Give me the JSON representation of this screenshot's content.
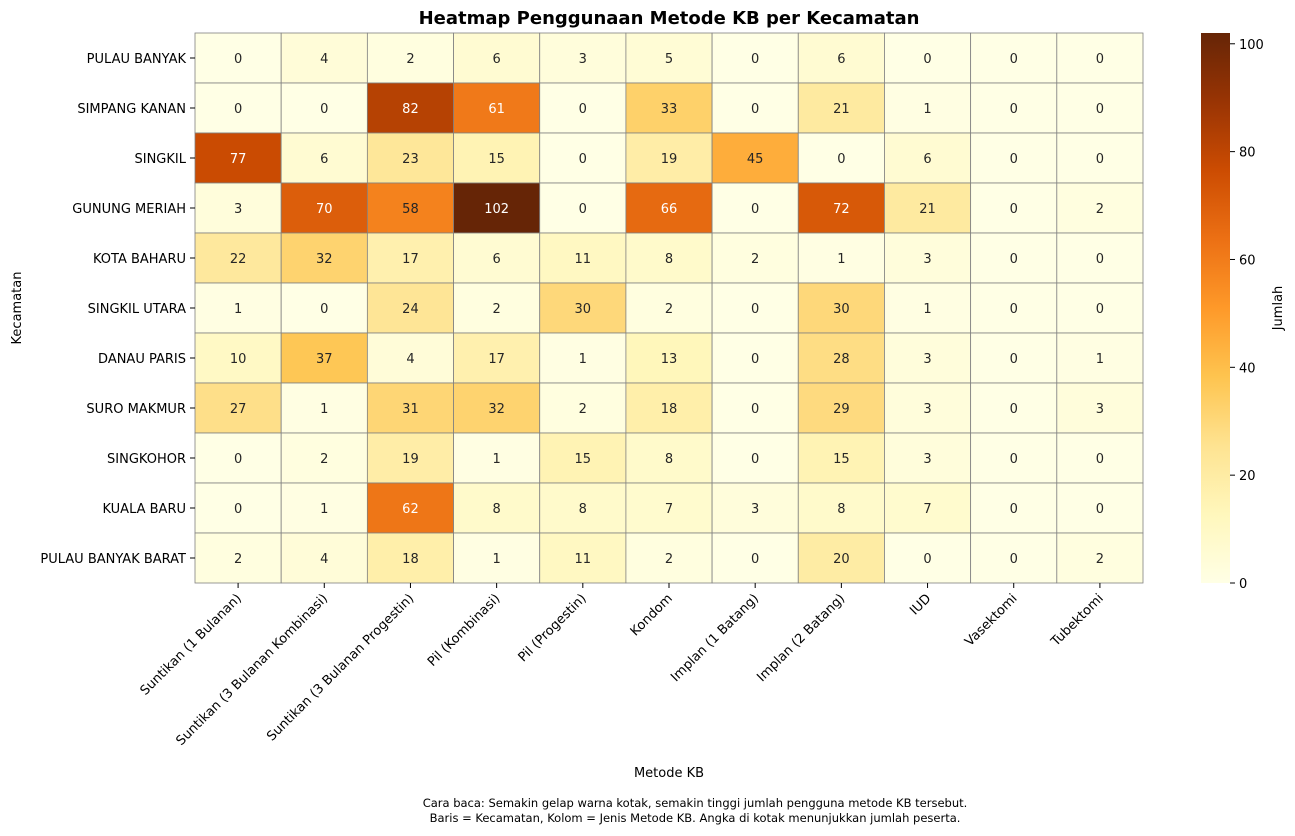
{
  "chart_data": {
    "type": "heatmap",
    "title": "Heatmap Penggunaan Metode KB per Kecamatan",
    "xlabel": "Metode KB",
    "ylabel": "Kecamatan",
    "rows": [
      "PULAU BANYAK",
      "SIMPANG KANAN",
      "SINGKIL",
      "GUNUNG MERIAH",
      "KOTA BAHARU",
      "SINGKIL UTARA",
      "DANAU PARIS",
      "SURO MAKMUR",
      "SINGKOHOR",
      "KUALA BARU",
      "PULAU BANYAK BARAT"
    ],
    "columns": [
      "Suntikan (1 Bulanan)",
      "Suntikan (3 Bulanan Kombinasi)",
      "Suntikan (3 Bulanan Progestin)",
      "Pil (Kombinasi)",
      "Pil (Progestin)",
      "Kondom",
      "Implan (1 Batang)",
      "Implan (2 Batang)",
      "IUD",
      "Vasektomi",
      "Tubektomi"
    ],
    "values": [
      [
        0,
        4,
        2,
        6,
        3,
        5,
        0,
        6,
        0,
        0,
        0
      ],
      [
        0,
        0,
        82,
        61,
        0,
        33,
        0,
        21,
        1,
        0,
        0
      ],
      [
        77,
        6,
        23,
        15,
        0,
        19,
        45,
        0,
        6,
        0,
        0
      ],
      [
        3,
        70,
        58,
        102,
        0,
        66,
        0,
        72,
        21,
        0,
        2
      ],
      [
        22,
        32,
        17,
        6,
        11,
        8,
        2,
        1,
        3,
        0,
        0
      ],
      [
        1,
        0,
        24,
        2,
        30,
        2,
        0,
        30,
        1,
        0,
        0
      ],
      [
        10,
        37,
        4,
        17,
        1,
        13,
        0,
        28,
        3,
        0,
        1
      ],
      [
        27,
        1,
        31,
        32,
        2,
        18,
        0,
        29,
        3,
        0,
        3
      ],
      [
        0,
        2,
        19,
        1,
        15,
        8,
        0,
        15,
        3,
        0,
        0
      ],
      [
        0,
        1,
        62,
        8,
        8,
        7,
        3,
        8,
        7,
        0,
        0
      ],
      [
        2,
        4,
        18,
        1,
        11,
        2,
        0,
        20,
        0,
        0,
        2
      ]
    ],
    "colorbar": {
      "label": "Jumlah",
      "range": [
        0,
        102
      ],
      "ticks": [
        "0",
        "20",
        "40",
        "60",
        "80",
        "100"
      ],
      "colormap": "YlOrBr"
    },
    "grid": true
  },
  "colors": {
    "cell_border": "#808080",
    "text_dark": "#262626",
    "text_light": "#ffffff",
    "colormap_stops": [
      "#ffffe5",
      "#fff7bc",
      "#fee391",
      "#fec44f",
      "#fe9929",
      "#ec7014",
      "#cc4c02",
      "#993404",
      "#662506"
    ]
  },
  "caption": {
    "line1": "Cara baca: Semakin gelap warna kotak, semakin tinggi jumlah pengguna metode KB tersebut.",
    "line2": "Baris = Kecamatan, Kolom = Jenis Metode KB. Angka di kotak menunjukkan jumlah peserta."
  }
}
